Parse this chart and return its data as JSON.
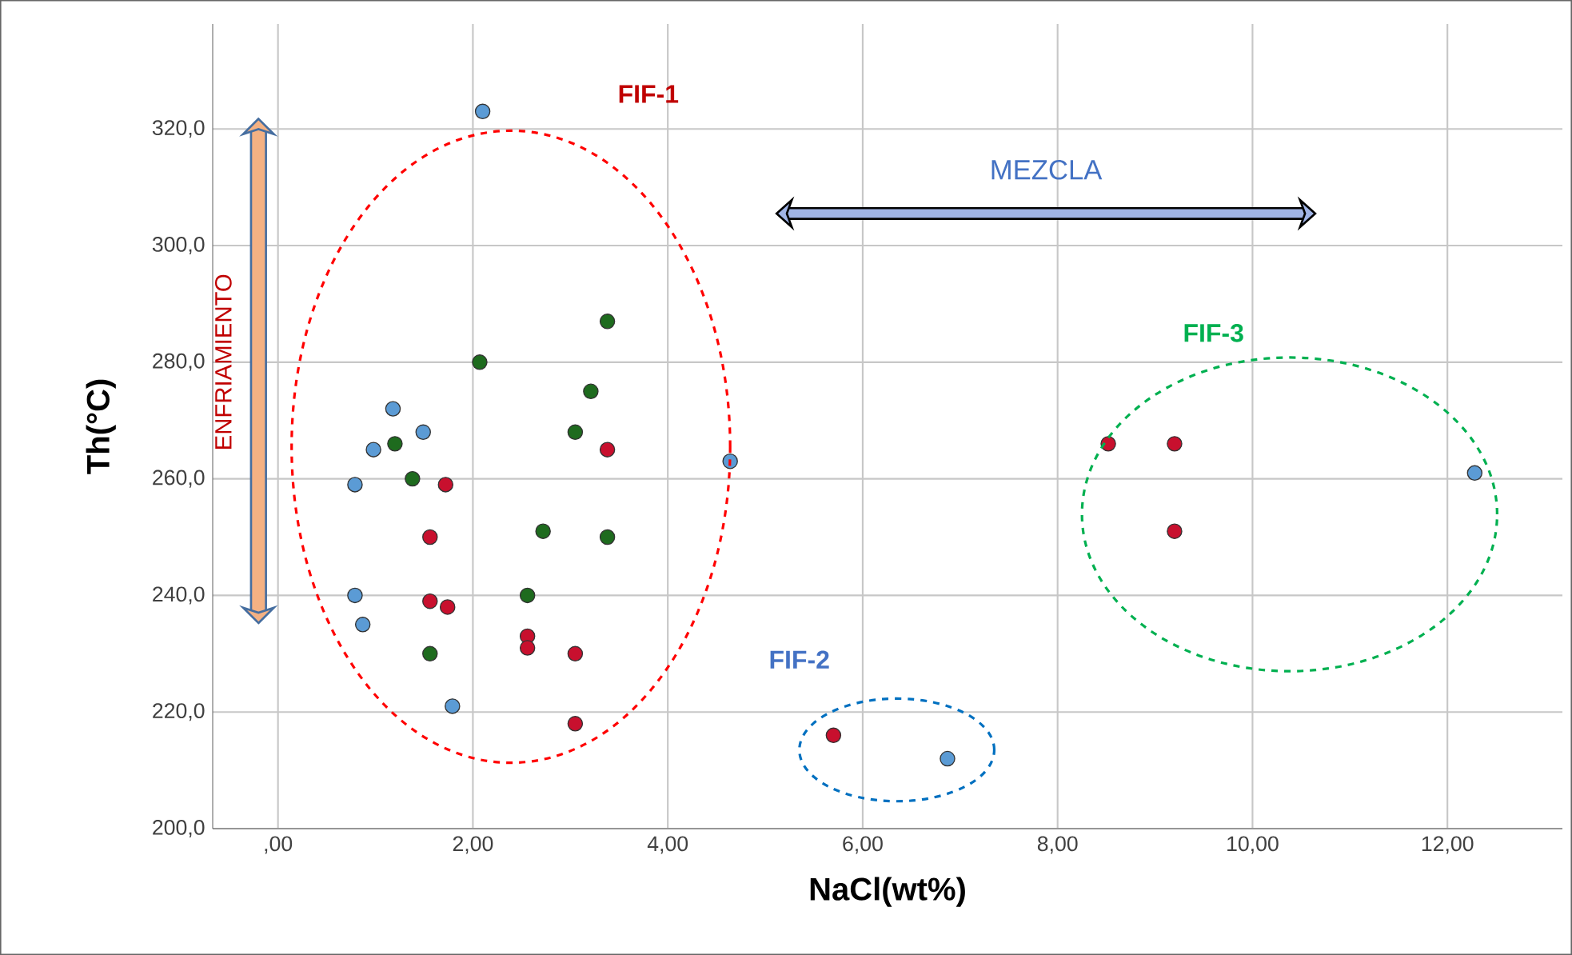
{
  "chart_data": {
    "type": "scatter",
    "xlabel": "NaCl(wt%)",
    "ylabel": "Th(°C)",
    "xlim": [
      -0.67,
      13.18
    ],
    "ylim": [
      200,
      338
    ],
    "xticks": [
      {
        "value": 0,
        "label": ",00"
      },
      {
        "value": 2,
        "label": "2,00"
      },
      {
        "value": 4,
        "label": "4,00"
      },
      {
        "value": 6,
        "label": "6,00"
      },
      {
        "value": 8,
        "label": "8,00"
      },
      {
        "value": 10,
        "label": "10,00"
      },
      {
        "value": 12,
        "label": "12,00"
      }
    ],
    "yticks": [
      {
        "value": 200,
        "label": "200,0"
      },
      {
        "value": 220,
        "label": "220,0"
      },
      {
        "value": 240,
        "label": "240,0"
      },
      {
        "value": 260,
        "label": "260,0"
      },
      {
        "value": 280,
        "label": "280,0"
      },
      {
        "value": 300,
        "label": "300,0"
      },
      {
        "value": 320,
        "label": "320,0"
      }
    ],
    "grid": true,
    "marker": "circle",
    "series": [
      {
        "color": "#5b9bd5",
        "x": [
          2.1,
          1.18,
          1.49,
          0.98,
          4.64,
          0.79,
          0.79,
          0.87,
          1.79,
          6.87,
          12.28
        ],
        "values": [
          323,
          272,
          268,
          265,
          263,
          259,
          240,
          235,
          221,
          212,
          261
        ]
      },
      {
        "color": "#1e6b1e",
        "x": [
          3.38,
          2.07,
          3.21,
          3.05,
          1.2,
          1.38,
          2.72,
          3.38,
          2.56,
          1.56
        ],
        "values": [
          287,
          280,
          275,
          268,
          266,
          260,
          251,
          250,
          240,
          230
        ]
      },
      {
        "color": "#c8102e",
        "x": [
          3.38,
          1.72,
          1.56,
          1.56,
          1.74,
          2.56,
          2.56,
          3.05,
          3.05,
          5.7,
          8.52,
          9.2,
          9.2
        ],
        "values": [
          265,
          259,
          250,
          239,
          238,
          233,
          231,
          230,
          218,
          216,
          266,
          266,
          251
        ]
      }
    ],
    "annotations": [
      "FIF-1",
      "FIF-2",
      "FIF-3",
      "MEZCLA",
      "ENFRIAMIENTO"
    ]
  }
}
